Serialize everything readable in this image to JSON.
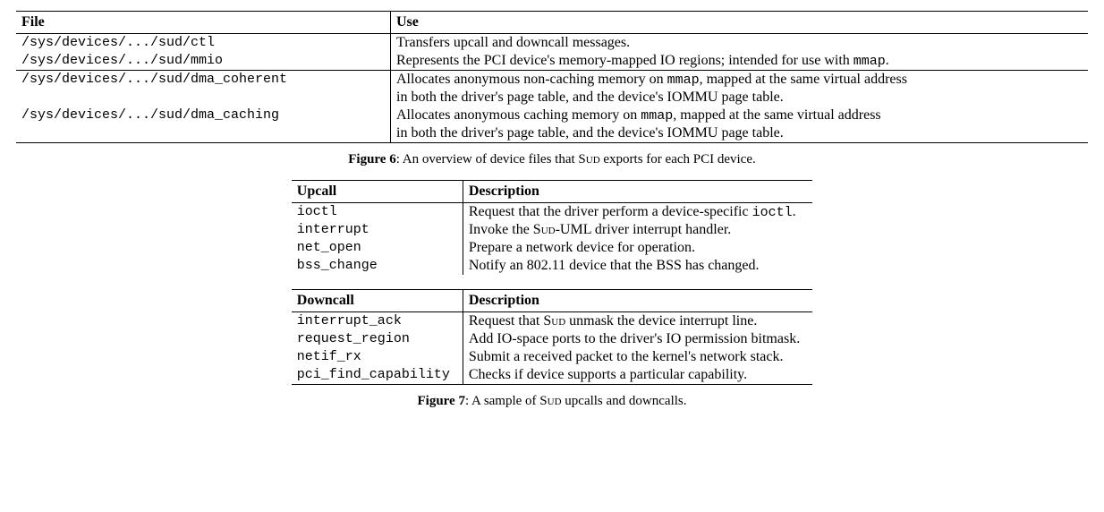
{
  "figure6": {
    "headers": {
      "file": "File",
      "use": "Use"
    },
    "rows": [
      {
        "file": "/sys/devices/.../sud/ctl",
        "use": "Transfers upcall and downcall messages."
      },
      {
        "file": "/sys/devices/.../sud/mmio",
        "use_pre": "Represents the PCI device's memory-mapped IO regions; intended for use with ",
        "mono": "mmap",
        "use_post": "."
      },
      {
        "file": "/sys/devices/.../sud/dma_coherent",
        "use_pre": "Allocates anonymous non-caching memory on ",
        "mono": "mmap",
        "use_post": ", mapped at the same virtual address",
        "use_line2": "in both the driver's page table, and the device's IOMMU page table."
      },
      {
        "file": "/sys/devices/.../sud/dma_caching",
        "use_pre": "Allocates anonymous caching memory on ",
        "mono": "mmap",
        "use_post": ", mapped at the same virtual address",
        "use_line2": "in both the driver's page table, and the device's IOMMU page table."
      }
    ],
    "caption_label": "Figure 6",
    "caption_pre": ": An overview of device files that S",
    "caption_sc": "ud",
    "caption_post": " exports for each PCI device."
  },
  "figure7": {
    "headers": {
      "upcall": "Upcall",
      "downcall": "Downcall",
      "description": "Description"
    },
    "upcalls": [
      {
        "name": "ioctl",
        "desc_pre": "Request that the driver perform a device-specific ",
        "mono": "ioctl",
        "desc_post": "."
      },
      {
        "name": "interrupt",
        "desc_pre": "Invoke the S",
        "sc": "ud",
        "desc_post": "-UML driver interrupt handler."
      },
      {
        "name": "net_open",
        "desc": "Prepare a network device for operation."
      },
      {
        "name": "bss_change",
        "desc": "Notify an 802.11 device that the BSS has changed."
      }
    ],
    "downcalls": [
      {
        "name": "interrupt_ack",
        "desc_pre": "Request that S",
        "sc": "ud",
        "desc_post": " unmask the device interrupt line."
      },
      {
        "name": "request_region",
        "desc": "Add IO-space ports to the driver's IO permission bitmask."
      },
      {
        "name": "netif_rx",
        "desc": "Submit a received packet to the kernel's network stack."
      },
      {
        "name": "pci_find_capability",
        "desc": "Checks if device supports a particular capability."
      }
    ],
    "caption_label": "Figure 7",
    "caption_pre": ": A sample of S",
    "caption_sc": "ud",
    "caption_post": " upcalls and downcalls."
  }
}
